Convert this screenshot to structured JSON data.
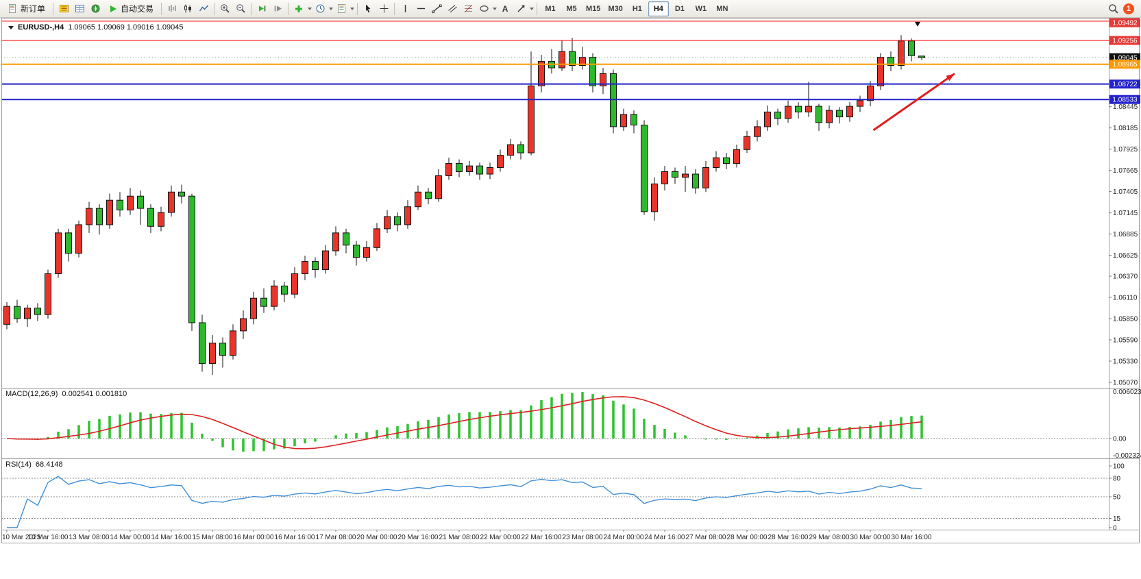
{
  "toolbar": {
    "new_order_label": "新订单",
    "auto_trading_label": "自动交易",
    "timeframes": [
      "M1",
      "M5",
      "M15",
      "M30",
      "H1",
      "H4",
      "D1",
      "W1",
      "MN"
    ],
    "active_timeframe": "H4",
    "notification_count": "1",
    "icons": {
      "text_tool": "A"
    }
  },
  "chart": {
    "symbol_label": "EURUSD-,H4",
    "ohlc": "1.09065 1.09069 1.09016 1.09045"
  },
  "macd": {
    "label": "MACD(12,26,9)",
    "values": "0.002541 0.001810",
    "axis": {
      "max": "0.006023",
      "zero": "0.00",
      "min": "-0.002324"
    }
  },
  "rsi": {
    "label": "RSI(14)",
    "value": "68.4148",
    "period": 14,
    "axis": [
      "100",
      "80",
      "50",
      "15",
      "0"
    ],
    "levels": [
      80,
      50,
      15
    ]
  },
  "chart_data": {
    "type": "candlestick",
    "symbol": "EURUSD",
    "timeframe": "H4",
    "colors": {
      "up": "#e8352b",
      "down": "#2db82d",
      "wick": "#111111",
      "macd_hist": "#2ec22e",
      "macd_signal": "#dd2020",
      "rsi_line": "#3f8fd6"
    },
    "price_ticks": [
      "1.08445",
      "1.08185",
      "1.07925",
      "1.07665",
      "1.07405",
      "1.07145",
      "1.06885",
      "1.06625",
      "1.06370",
      "1.06110",
      "1.05850",
      "1.05590",
      "1.05330",
      "1.05070"
    ],
    "hlines": [
      {
        "price": "1.09492",
        "color": "#ff2a2a",
        "tag_bg": "#e53935",
        "width": 1.2
      },
      {
        "price": "1.09256",
        "color": "#ff2a2a",
        "tag_bg": "#e53935",
        "width": 1.2
      },
      {
        "price": "1.09045",
        "color": "#888888",
        "tag_bg": "#111111",
        "width": 1,
        "dash": "1,3"
      },
      {
        "price": "1.08965",
        "color": "#ff9900",
        "tag_bg": "#ff9900",
        "width": 2
      },
      {
        "price": "1.08722",
        "color": "#2222cc",
        "tag_bg": "#2222cc",
        "width": 2
      },
      {
        "price": "1.08533",
        "color": "#2222cc",
        "tag_bg": "#2222cc",
        "width": 2
      }
    ],
    "x_labels": [
      "10 Mar 2023",
      "10 Mar 16:00",
      "13 Mar 08:00",
      "14 Mar 00:00",
      "14 Mar 16:00",
      "15 Mar 08:00",
      "16 Mar 00:00",
      "16 Mar 16:00",
      "17 Mar 08:00",
      "20 Mar 00:00",
      "20 Mar 16:00",
      "21 Mar 08:00",
      "22 Mar 00:00",
      "22 Mar 16:00",
      "23 Mar 08:00",
      "24 Mar 00:00",
      "24 Mar 16:00",
      "27 Mar 08:00",
      "28 Mar 00:00",
      "28 Mar 16:00",
      "29 Mar 08:00",
      "30 Mar 00:00",
      "30 Mar 16:00"
    ],
    "label_every": 4,
    "candles": [
      [
        1.0578,
        1.0605,
        1.0572,
        1.06
      ],
      [
        1.06,
        1.0608,
        1.058,
        1.0585
      ],
      [
        1.0585,
        1.0602,
        1.0575,
        1.0598
      ],
      [
        1.0598,
        1.0604,
        1.0582,
        1.059
      ],
      [
        1.059,
        1.0645,
        1.0585,
        1.064
      ],
      [
        1.064,
        1.0695,
        1.0635,
        1.069
      ],
      [
        1.069,
        1.0695,
        1.0655,
        1.0665
      ],
      [
        1.0665,
        1.0705,
        1.066,
        1.07
      ],
      [
        1.07,
        1.0728,
        1.069,
        1.072
      ],
      [
        1.072,
        1.0725,
        1.0688,
        1.07
      ],
      [
        1.07,
        1.0738,
        1.0695,
        1.073
      ],
      [
        1.073,
        1.074,
        1.071,
        1.0718
      ],
      [
        1.0718,
        1.0745,
        1.0712,
        1.0735
      ],
      [
        1.0735,
        1.0742,
        1.07,
        1.072
      ],
      [
        1.072,
        1.0725,
        1.069,
        1.0698
      ],
      [
        1.0698,
        1.0722,
        1.0692,
        1.0715
      ],
      [
        1.0715,
        1.0748,
        1.071,
        1.074
      ],
      [
        1.074,
        1.0749,
        1.0726,
        1.0735
      ],
      [
        1.0735,
        1.0738,
        1.057,
        1.058
      ],
      [
        1.058,
        1.059,
        1.052,
        1.053
      ],
      [
        1.053,
        1.0565,
        1.0516,
        1.0555
      ],
      [
        1.0555,
        1.0562,
        1.0525,
        1.054
      ],
      [
        1.054,
        1.0578,
        1.0535,
        1.057
      ],
      [
        1.057,
        1.0595,
        1.056,
        1.0585
      ],
      [
        1.0585,
        1.0618,
        1.0578,
        1.061
      ],
      [
        1.061,
        1.0622,
        1.0592,
        1.06
      ],
      [
        1.06,
        1.0632,
        1.0595,
        1.0625
      ],
      [
        1.0625,
        1.063,
        1.0605,
        1.0615
      ],
      [
        1.0615,
        1.0648,
        1.061,
        1.064
      ],
      [
        1.064,
        1.0662,
        1.0632,
        1.0655
      ],
      [
        1.0655,
        1.066,
        1.0635,
        1.0645
      ],
      [
        1.0645,
        1.0675,
        1.064,
        1.0668
      ],
      [
        1.0668,
        1.0698,
        1.0662,
        1.069
      ],
      [
        1.069,
        1.0695,
        1.0665,
        1.0675
      ],
      [
        1.0675,
        1.068,
        1.065,
        1.066
      ],
      [
        1.066,
        1.068,
        1.0655,
        1.0672
      ],
      [
        1.0672,
        1.0702,
        1.0668,
        1.0695
      ],
      [
        1.0695,
        1.0718,
        1.069,
        1.071
      ],
      [
        1.071,
        1.0715,
        1.0692,
        1.07
      ],
      [
        1.07,
        1.073,
        1.0695,
        1.0722
      ],
      [
        1.0722,
        1.0748,
        1.0718,
        1.074
      ],
      [
        1.074,
        1.0745,
        1.0725,
        1.0732
      ],
      [
        1.0732,
        1.0768,
        1.0728,
        1.076
      ],
      [
        1.076,
        1.0782,
        1.0755,
        1.0775
      ],
      [
        1.0775,
        1.078,
        1.0758,
        1.0765
      ],
      [
        1.0765,
        1.0778,
        1.076,
        1.0772
      ],
      [
        1.0772,
        1.0776,
        1.0755,
        1.0762
      ],
      [
        1.0762,
        1.0776,
        1.0756,
        1.077
      ],
      [
        1.077,
        1.0792,
        1.0765,
        1.0785
      ],
      [
        1.0785,
        1.0805,
        1.078,
        1.0798
      ],
      [
        1.0798,
        1.0802,
        1.078,
        1.0788
      ],
      [
        1.0788,
        1.0912,
        1.0785,
        1.087
      ],
      [
        1.087,
        1.0908,
        1.0862,
        1.09
      ],
      [
        1.09,
        1.0915,
        1.0885,
        1.0892
      ],
      [
        1.0892,
        1.0926,
        1.0888,
        1.0912
      ],
      [
        1.0912,
        1.0929,
        1.0888,
        1.0895
      ],
      [
        1.0895,
        1.0918,
        1.089,
        1.0905
      ],
      [
        1.0905,
        1.091,
        1.0862,
        1.087
      ],
      [
        1.087,
        1.0892,
        1.086,
        1.0885
      ],
      [
        1.0885,
        1.089,
        1.0812,
        1.082
      ],
      [
        1.082,
        1.0842,
        1.0815,
        1.0835
      ],
      [
        1.0835,
        1.084,
        1.0812,
        1.0822
      ],
      [
        1.0822,
        1.0828,
        1.0712,
        1.0716
      ],
      [
        1.0716,
        1.0758,
        1.0705,
        1.075
      ],
      [
        1.075,
        1.0772,
        1.0742,
        1.0765
      ],
      [
        1.0765,
        1.077,
        1.075,
        1.0758
      ],
      [
        1.0758,
        1.0772,
        1.074,
        1.0762
      ],
      [
        1.0762,
        1.0768,
        1.0738,
        1.0745
      ],
      [
        1.0745,
        1.0778,
        1.074,
        1.077
      ],
      [
        1.077,
        1.079,
        1.0765,
        1.0782
      ],
      [
        1.0782,
        1.0788,
        1.0768,
        1.0775
      ],
      [
        1.0775,
        1.0798,
        1.077,
        1.0792
      ],
      [
        1.0792,
        1.0815,
        1.0788,
        1.0808
      ],
      [
        1.0808,
        1.0828,
        1.0802,
        1.082
      ],
      [
        1.082,
        1.0846,
        1.0815,
        1.0838
      ],
      [
        1.0838,
        1.0842,
        1.0822,
        1.083
      ],
      [
        1.083,
        1.0852,
        1.0825,
        1.0845
      ],
      [
        1.0845,
        1.085,
        1.083,
        1.0838
      ],
      [
        1.0838,
        1.0875,
        1.0832,
        1.0845
      ],
      [
        1.0845,
        1.0848,
        1.0815,
        1.0825
      ],
      [
        1.0825,
        1.0846,
        1.0818,
        1.084
      ],
      [
        1.084,
        1.0844,
        1.0824,
        1.0832
      ],
      [
        1.0832,
        1.085,
        1.0826,
        1.0845
      ],
      [
        1.0845,
        1.0858,
        1.0838,
        1.0852
      ],
      [
        1.0852,
        1.0876,
        1.0845,
        1.087
      ],
      [
        1.087,
        1.091,
        1.0865,
        1.0905
      ],
      [
        1.0905,
        1.0912,
        1.0888,
        1.0895
      ],
      [
        1.0895,
        1.0932,
        1.089,
        1.0925
      ],
      [
        1.0925,
        1.0928,
        1.09,
        1.0907
      ],
      [
        1.09065,
        1.09069,
        1.09016,
        1.09045
      ]
    ],
    "arrow": {
      "from_bar": 84.3,
      "from_price": 1.08157,
      "to_bar": 92.2,
      "to_price": 1.0885,
      "color": "#e01f1f"
    },
    "marker": {
      "bar": 88.6,
      "price": 1.0945
    }
  }
}
